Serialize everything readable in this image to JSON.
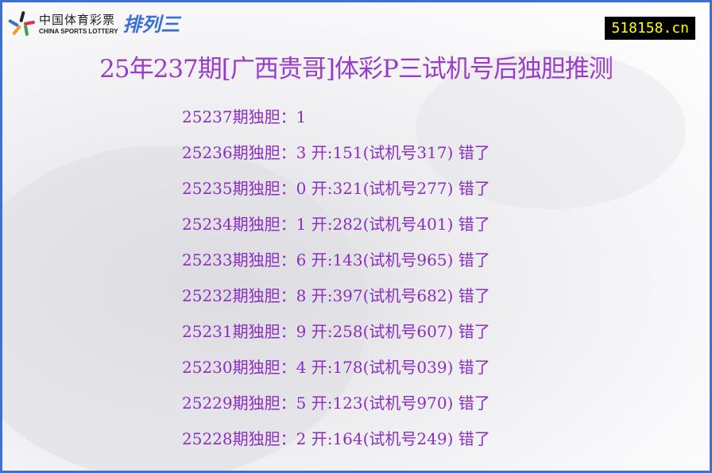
{
  "logo": {
    "cn": "中国体育彩票",
    "en": "CHINA SPORTS LOTTERY",
    "game": "排列三"
  },
  "site": "518158.cn",
  "title": "25年237期[广西贵哥]体彩P三试机号后独胆推测",
  "rows": [
    "25237期独胆：1",
    "25236期独胆：3 开:151(试机号317) 错了",
    "25235期独胆：0 开:321(试机号277) 错了",
    "25234期独胆：1 开:282(试机号401) 错了",
    "25233期独胆：6 开:143(试机号965) 错了",
    "25232期独胆：8 开:397(试机号682) 错了",
    "25231期独胆：9 开:258(试机号607) 错了",
    "25230期独胆：4 开:178(试机号039) 错了",
    "25229期独胆：5 开:123(试机号970) 错了",
    "25228期独胆：2 开:164(试机号249) 错了"
  ],
  "colors": {
    "border": "#3f6fd0",
    "title": "#9a3cc8",
    "text": "#8b2ec0",
    "site_bg": "#000000",
    "site_fg": "#ffff00"
  }
}
